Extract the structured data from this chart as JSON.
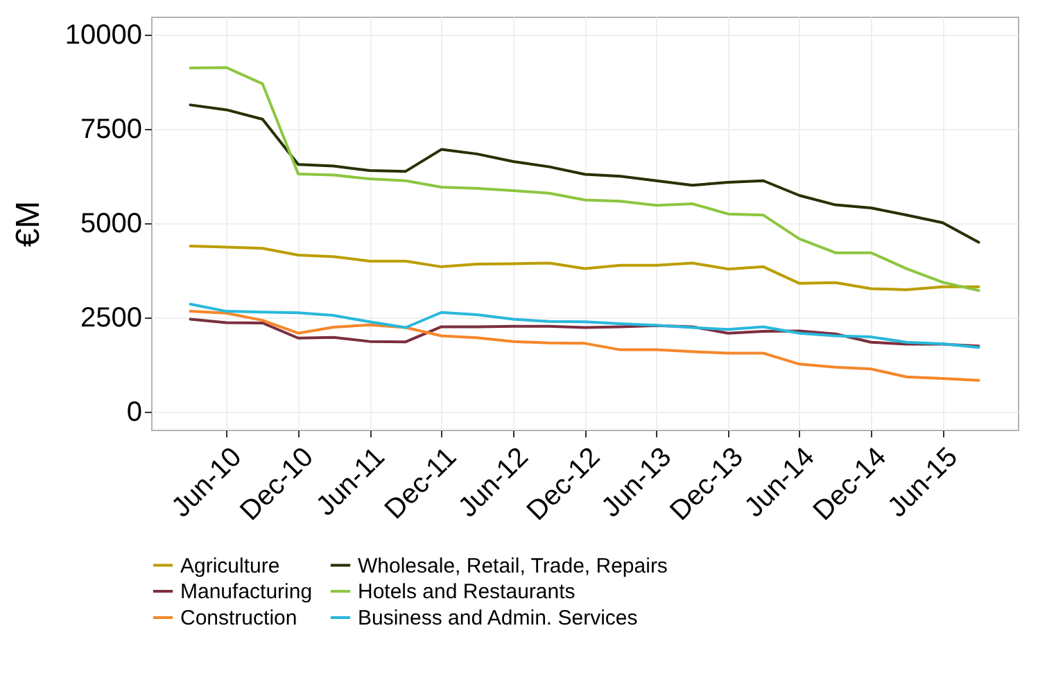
{
  "chart_data": {
    "type": "line",
    "ylabel": "€M",
    "x": [
      "2010-03-01",
      "2010-06-01",
      "2010-09-01",
      "2010-12-01",
      "2011-03-01",
      "2011-06-01",
      "2011-09-01",
      "2011-12-01",
      "2012-03-01",
      "2012-06-01",
      "2012-09-01",
      "2012-12-01",
      "2013-03-01",
      "2013-06-01",
      "2013-09-01",
      "2013-12-01",
      "2014-03-01",
      "2014-06-01",
      "2014-09-01",
      "2014-12-01",
      "2015-03-01",
      "2015-06-01",
      "2015-09-01"
    ],
    "xlim": [
      "2009-11-21",
      "2015-12-10"
    ],
    "xticks": [
      {
        "value": "2010-06-01",
        "label": "Jun-10"
      },
      {
        "value": "2010-12-01",
        "label": "Dec-10"
      },
      {
        "value": "2011-06-01",
        "label": "Jun-11"
      },
      {
        "value": "2011-12-01",
        "label": "Dec-11"
      },
      {
        "value": "2012-06-01",
        "label": "Jun-12"
      },
      {
        "value": "2012-12-01",
        "label": "Dec-12"
      },
      {
        "value": "2013-06-01",
        "label": "Jun-13"
      },
      {
        "value": "2013-12-01",
        "label": "Dec-13"
      },
      {
        "value": "2014-06-01",
        "label": "Jun-14"
      },
      {
        "value": "2014-12-01",
        "label": "Dec-14"
      },
      {
        "value": "2015-06-01",
        "label": "Jun-15"
      }
    ],
    "ylim": [
      -480,
      10470
    ],
    "yticks": [
      0,
      2500,
      5000,
      7500,
      10000
    ],
    "grid": true,
    "legend": "bottom",
    "line_style": "solid",
    "series": [
      {
        "name": "Agriculture",
        "color": "#bb9e00",
        "values": [
          4390,
          4360,
          4330,
          4150,
          4110,
          3990,
          3990,
          3840,
          3910,
          3920,
          3940,
          3790,
          3880,
          3880,
          3940,
          3780,
          3840,
          3400,
          3420,
          3260,
          3230,
          3310,
          3310
        ]
      },
      {
        "name": "Manufacturing",
        "color": "#7b2e3e",
        "values": [
          2450,
          2360,
          2350,
          1950,
          1970,
          1860,
          1850,
          2250,
          2250,
          2260,
          2260,
          2230,
          2250,
          2280,
          2250,
          2080,
          2130,
          2140,
          2060,
          1840,
          1790,
          1790,
          1740
        ]
      },
      {
        "name": "Construction",
        "color": "#f5872a",
        "values": [
          2660,
          2610,
          2420,
          2080,
          2240,
          2300,
          2230,
          2010,
          1960,
          1860,
          1820,
          1810,
          1640,
          1640,
          1590,
          1550,
          1550,
          1260,
          1180,
          1130,
          920,
          880,
          830
        ]
      },
      {
        "name": "Wholesale, Retail, Trade, Repairs",
        "color": "#263100",
        "values": [
          8130,
          8000,
          7750,
          6550,
          6510,
          6390,
          6370,
          6950,
          6830,
          6630,
          6490,
          6290,
          6240,
          6120,
          6000,
          6080,
          6120,
          5730,
          5480,
          5400,
          5210,
          5010,
          4490
        ]
      },
      {
        "name": "Hotels and Restaurants",
        "color": "#8cc63f",
        "values": [
          9110,
          9120,
          8690,
          6300,
          6270,
          6170,
          6120,
          5950,
          5920,
          5860,
          5790,
          5610,
          5580,
          5470,
          5510,
          5240,
          5210,
          4580,
          4210,
          4210,
          3790,
          3430,
          3210
        ]
      },
      {
        "name": "Business and Admin. Services",
        "color": "#29b8db",
        "values": [
          2850,
          2660,
          2640,
          2620,
          2550,
          2380,
          2230,
          2630,
          2570,
          2450,
          2390,
          2380,
          2330,
          2290,
          2230,
          2180,
          2250,
          2080,
          2010,
          1980,
          1840,
          1800,
          1700
        ]
      }
    ]
  }
}
